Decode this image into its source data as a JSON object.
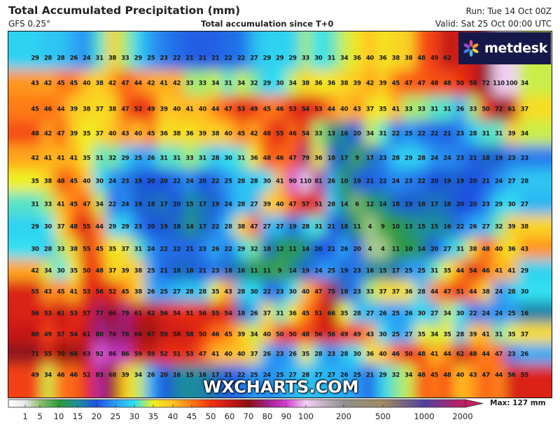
{
  "header": {
    "title": "Total Accumulated Precipitation (mm)",
    "model": "GFS 0.25°",
    "subtitle": "Total accumulation since T+0",
    "run": "Run: Tue 14 Oct 00Z",
    "valid": "Valid: Sat 25 Oct 00:00 UTC"
  },
  "branding": {
    "logo_text": "metdesk",
    "watermark": "WXCHARTS.COM"
  },
  "map": {
    "units": "mm",
    "values": [
      [
        "29",
        "28",
        "28",
        "26",
        "24",
        "31",
        "38",
        "33",
        "29",
        "25",
        "23",
        "22",
        "21",
        "21",
        "21",
        "22",
        "22",
        "27",
        "29",
        "29",
        "29",
        "33",
        "30",
        "31",
        "34",
        "36",
        "40",
        "36",
        "38",
        "38",
        "48",
        "49",
        "62",
        "",
        "",
        "",
        "",
        "",
        ""
      ],
      [
        "43",
        "42",
        "45",
        "45",
        "40",
        "38",
        "42",
        "47",
        "44",
        "42",
        "41",
        "42",
        "33",
        "33",
        "34",
        "31",
        "34",
        "32",
        "29",
        "30",
        "34",
        "38",
        "36",
        "36",
        "38",
        "39",
        "42",
        "39",
        "45",
        "47",
        "47",
        "48",
        "48",
        "50",
        "58",
        "72",
        "110",
        "100",
        "34"
      ],
      [
        "45",
        "46",
        "44",
        "39",
        "38",
        "37",
        "38",
        "47",
        "52",
        "49",
        "39",
        "40",
        "41",
        "40",
        "44",
        "47",
        "53",
        "49",
        "45",
        "46",
        "53",
        "54",
        "53",
        "44",
        "40",
        "43",
        "37",
        "35",
        "41",
        "33",
        "33",
        "31",
        "31",
        "26",
        "33",
        "50",
        "72",
        "61",
        "37"
      ],
      [
        "48",
        "42",
        "47",
        "39",
        "35",
        "37",
        "40",
        "43",
        "40",
        "45",
        "36",
        "38",
        "36",
        "39",
        "38",
        "40",
        "45",
        "42",
        "48",
        "55",
        "46",
        "54",
        "33",
        "13",
        "16",
        "20",
        "34",
        "31",
        "22",
        "25",
        "22",
        "22",
        "21",
        "23",
        "28",
        "31",
        "31",
        "39",
        "34"
      ],
      [
        "42",
        "41",
        "41",
        "41",
        "35",
        "31",
        "32",
        "29",
        "25",
        "26",
        "31",
        "31",
        "33",
        "31",
        "28",
        "30",
        "31",
        "36",
        "48",
        "46",
        "47",
        "79",
        "36",
        "18",
        "17",
        "9",
        "17",
        "23",
        "28",
        "29",
        "28",
        "24",
        "24",
        "23",
        "21",
        "18",
        "19",
        "23",
        "23"
      ],
      [
        "35",
        "38",
        "48",
        "45",
        "40",
        "30",
        "24",
        "23",
        "19",
        "20",
        "20",
        "22",
        "24",
        "20",
        "22",
        "25",
        "28",
        "28",
        "30",
        "41",
        "90",
        "110",
        "81",
        "26",
        "10",
        "19",
        "21",
        "22",
        "24",
        "23",
        "22",
        "20",
        "19",
        "19",
        "20",
        "21",
        "24",
        "27",
        "28"
      ],
      [
        "31",
        "33",
        "41",
        "45",
        "47",
        "34",
        "22",
        "24",
        "19",
        "18",
        "17",
        "20",
        "15",
        "17",
        "19",
        "24",
        "28",
        "27",
        "39",
        "40",
        "47",
        "57",
        "51",
        "28",
        "14",
        "6",
        "12",
        "14",
        "18",
        "19",
        "18",
        "17",
        "18",
        "20",
        "20",
        "23",
        "29",
        "30",
        "27"
      ],
      [
        "29",
        "30",
        "37",
        "48",
        "55",
        "44",
        "29",
        "29",
        "23",
        "20",
        "19",
        "18",
        "14",
        "17",
        "22",
        "28",
        "38",
        "47",
        "27",
        "27",
        "19",
        "28",
        "31",
        "21",
        "18",
        "11",
        "4",
        "9",
        "10",
        "13",
        "15",
        "15",
        "16",
        "22",
        "26",
        "27",
        "32",
        "39",
        "38"
      ],
      [
        "30",
        "28",
        "33",
        "38",
        "55",
        "45",
        "35",
        "37",
        "31",
        "24",
        "22",
        "22",
        "21",
        "23",
        "26",
        "22",
        "29",
        "32",
        "18",
        "12",
        "11",
        "14",
        "20",
        "21",
        "26",
        "20",
        "4",
        "4",
        "11",
        "10",
        "14",
        "20",
        "27",
        "31",
        "38",
        "48",
        "40",
        "36",
        "43"
      ],
      [
        "42",
        "34",
        "30",
        "35",
        "50",
        "48",
        "37",
        "39",
        "38",
        "25",
        "21",
        "18",
        "18",
        "21",
        "23",
        "18",
        "16",
        "11",
        "11",
        "9",
        "14",
        "19",
        "24",
        "25",
        "19",
        "23",
        "16",
        "15",
        "17",
        "25",
        "25",
        "31",
        "35",
        "44",
        "54",
        "46",
        "41",
        "41",
        "29"
      ],
      [
        "55",
        "43",
        "45",
        "41",
        "53",
        "56",
        "52",
        "45",
        "38",
        "26",
        "25",
        "27",
        "28",
        "28",
        "35",
        "43",
        "28",
        "30",
        "22",
        "23",
        "30",
        "40",
        "47",
        "75",
        "18",
        "23",
        "33",
        "37",
        "37",
        "36",
        "28",
        "44",
        "47",
        "51",
        "44",
        "38",
        "24",
        "28",
        "30"
      ],
      [
        "56",
        "53",
        "61",
        "53",
        "57",
        "77",
        "66",
        "79",
        "61",
        "62",
        "56",
        "54",
        "51",
        "56",
        "55",
        "54",
        "18",
        "26",
        "37",
        "31",
        "36",
        "45",
        "51",
        "66",
        "35",
        "28",
        "27",
        "26",
        "25",
        "26",
        "30",
        "27",
        "34",
        "30",
        "22",
        "24",
        "24",
        "25",
        "16"
      ],
      [
        "60",
        "49",
        "57",
        "54",
        "61",
        "80",
        "76",
        "78",
        "66",
        "67",
        "59",
        "58",
        "58",
        "50",
        "46",
        "45",
        "39",
        "34",
        "40",
        "50",
        "50",
        "48",
        "56",
        "56",
        "49",
        "49",
        "43",
        "30",
        "25",
        "27",
        "35",
        "34",
        "35",
        "28",
        "39",
        "41",
        "31",
        "35",
        "37"
      ],
      [
        "71",
        "55",
        "70",
        "68",
        "63",
        "92",
        "86",
        "86",
        "59",
        "59",
        "52",
        "51",
        "53",
        "47",
        "41",
        "40",
        "40",
        "37",
        "26",
        "23",
        "26",
        "35",
        "28",
        "23",
        "28",
        "30",
        "36",
        "40",
        "46",
        "50",
        "48",
        "41",
        "44",
        "62",
        "48",
        "44",
        "47",
        "23",
        "26"
      ],
      [
        "49",
        "34",
        "46",
        "46",
        "52",
        "83",
        "68",
        "39",
        "34",
        "26",
        "20",
        "16",
        "15",
        "16",
        "17",
        "21",
        "22",
        "25",
        "24",
        "25",
        "27",
        "28",
        "27",
        "27",
        "26",
        "25",
        "21",
        "29",
        "32",
        "34",
        "48",
        "45",
        "48",
        "40",
        "43",
        "47",
        "44",
        "56",
        "55"
      ]
    ]
  },
  "legend": {
    "max_label": "Max: 127 mm",
    "stops": [
      {
        "label": "1",
        "value": 1,
        "color": "#e8e8e8"
      },
      {
        "label": "5",
        "value": 5,
        "color": "#8fc070"
      },
      {
        "label": "10",
        "value": 10,
        "color": "#2e9a3a"
      },
      {
        "label": "15",
        "value": 15,
        "color": "#1f8f9a"
      },
      {
        "label": "20",
        "value": 20,
        "color": "#1e50e0"
      },
      {
        "label": "25",
        "value": 25,
        "color": "#2a9cf5"
      },
      {
        "label": "30",
        "value": 30,
        "color": "#30e0f0"
      },
      {
        "label": "35",
        "value": 35,
        "color": "#f0f020"
      },
      {
        "label": "40",
        "value": 40,
        "color": "#ffc020"
      },
      {
        "label": "45",
        "value": 45,
        "color": "#ff7a18"
      },
      {
        "label": "50",
        "value": 50,
        "color": "#f03010"
      },
      {
        "label": "60",
        "value": 60,
        "color": "#c81818"
      },
      {
        "label": "70",
        "value": 70,
        "color": "#8c1010"
      },
      {
        "label": "80",
        "value": 80,
        "color": "#a0208c"
      },
      {
        "label": "90",
        "value": 90,
        "color": "#d040d0"
      },
      {
        "label": "100",
        "value": 100,
        "color": "#f4d0f4"
      },
      {
        "label": "200",
        "value": 200,
        "color": "#909090"
      },
      {
        "label": "500",
        "value": 500,
        "color": "#a08a60"
      },
      {
        "label": "1000",
        "value": 1000,
        "color": "#5040a0"
      },
      {
        "label": "2000",
        "value": 2000,
        "color": "#c02060"
      }
    ]
  }
}
